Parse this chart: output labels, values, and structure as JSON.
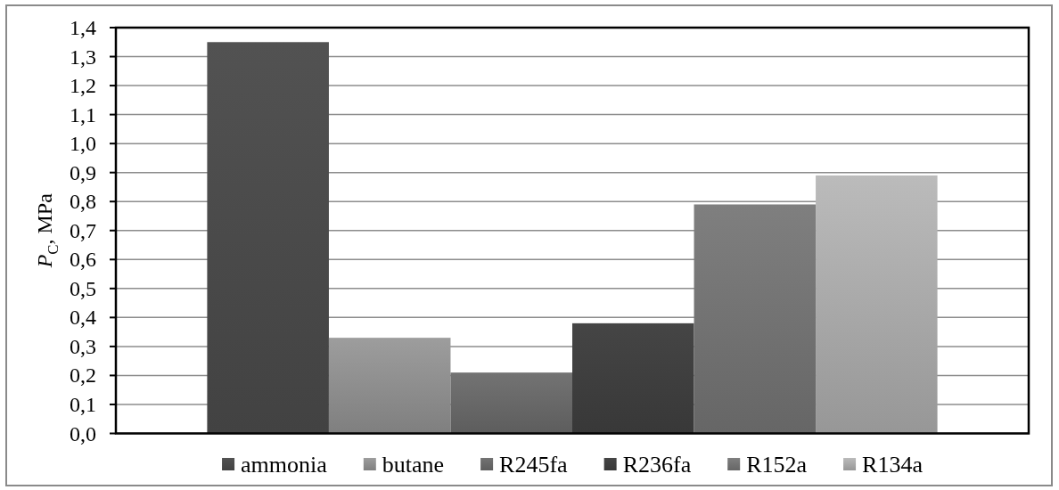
{
  "chart_data": {
    "type": "bar",
    "ylabel": "P$_{C}$, MPa",
    "categories": [
      null
    ],
    "series": [
      {
        "name": "ammonia",
        "color": "#4a4a4a",
        "values": [
          1.35
        ]
      },
      {
        "name": "butane",
        "color": "#8d8d8d",
        "values": [
          0.33
        ]
      },
      {
        "name": "R245fa",
        "color": "#676767",
        "values": [
          0.21
        ]
      },
      {
        "name": "R236fa",
        "color": "#3e3e3e",
        "values": [
          0.38
        ]
      },
      {
        "name": "R152a",
        "color": "#727272",
        "values": [
          0.79
        ]
      },
      {
        "name": "R134a",
        "color": "#a8a8a8",
        "values": [
          0.89
        ]
      }
    ],
    "ylim": [
      0,
      1.4
    ],
    "yticks": [
      {
        "value": 0,
        "label": "0,0"
      },
      {
        "value": 0.1,
        "label": "0,1"
      },
      {
        "value": 0.2,
        "label": "0,2"
      },
      {
        "value": 0.3,
        "label": "0,3"
      },
      {
        "value": 0.4,
        "label": "0,4"
      },
      {
        "value": 0.5,
        "label": "0,5"
      },
      {
        "value": 0.6,
        "label": "0,6"
      },
      {
        "value": 0.7,
        "label": "0,7"
      },
      {
        "value": 0.8,
        "label": "0,8"
      },
      {
        "value": 0.9,
        "label": "0,9"
      },
      {
        "value": 1,
        "label": "1,0"
      },
      {
        "value": 1.1,
        "label": "1,1"
      },
      {
        "value": 1.2,
        "label": "1,2"
      },
      {
        "value": 1.3,
        "label": "1,3"
      },
      {
        "value": 1.4,
        "label": "1,4"
      }
    ],
    "grid": "y",
    "legend": "bottom"
  }
}
